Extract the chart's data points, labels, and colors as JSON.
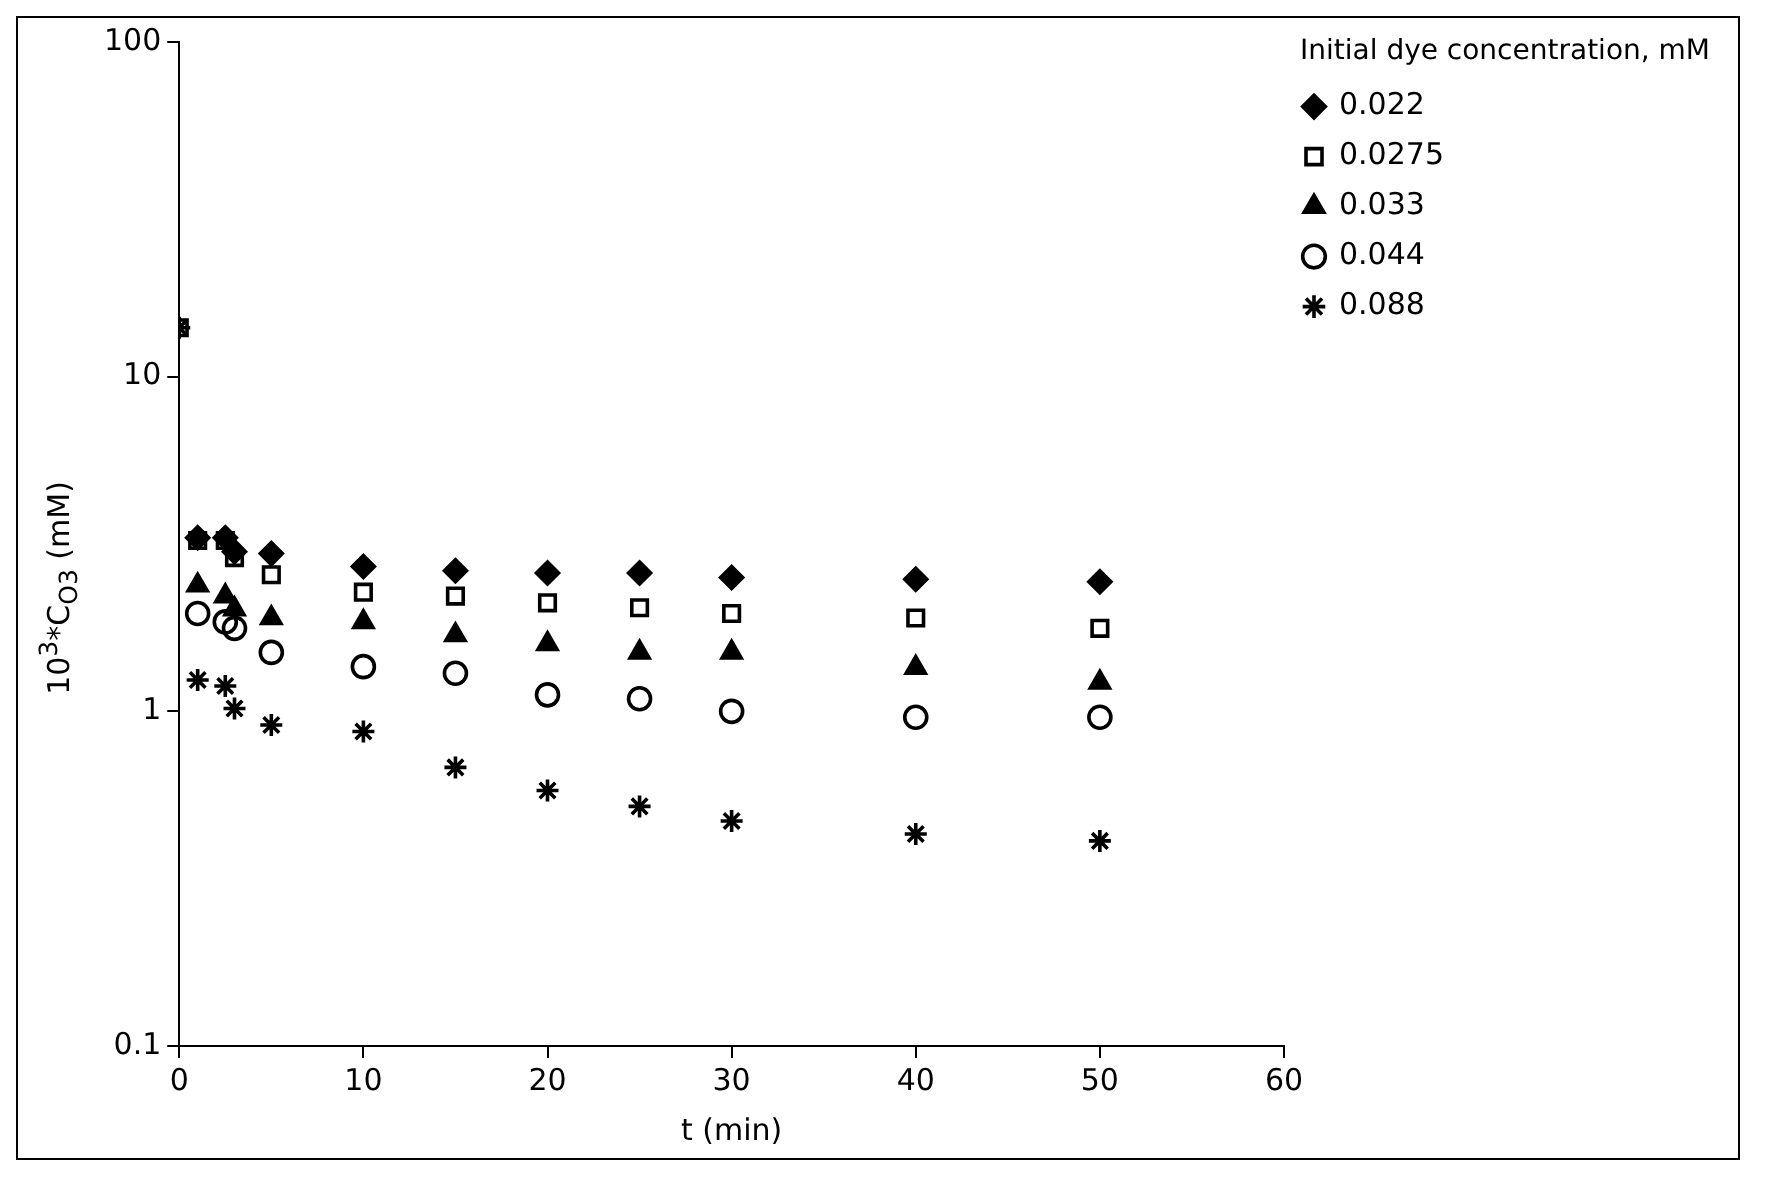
{
  "chart_data": {
    "type": "scatter",
    "xlabel": "t (min)",
    "ylabel": "10$^{3}$*C$_{O3}$ (mM)",
    "legend_title": "Initial dye concentration, mM",
    "legend": "top right",
    "grid": false,
    "log": "y",
    "x": [
      0,
      1,
      2.5,
      3,
      5,
      10,
      15,
      20,
      25,
      30,
      40,
      50
    ],
    "xlim": [
      0,
      60
    ],
    "xticks": [
      0,
      10,
      20,
      30,
      40,
      50,
      60
    ],
    "ylim": [
      0.1,
      100
    ],
    "yticks": [
      0.1,
      1,
      10,
      100
    ],
    "series": [
      {
        "name": "0.022",
        "color": "#000000",
        "marker": "diamond",
        "values": [
          null,
          3.3,
          3.3,
          3.0,
          2.96,
          2.71,
          2.63,
          2.59,
          2.59,
          2.51,
          2.48,
          2.44
        ]
      },
      {
        "name": "0.0275",
        "color": "#000000",
        "marker": "square",
        "values": [
          14,
          3.24,
          3.24,
          2.88,
          2.56,
          2.27,
          2.21,
          2.11,
          2.04,
          1.96,
          1.9,
          1.77
        ]
      },
      {
        "name": "0.033",
        "color": "#000000",
        "marker": "triangle",
        "values": [
          null,
          2.38,
          2.21,
          2.02,
          1.9,
          1.85,
          1.69,
          1.59,
          1.5,
          1.5,
          1.35,
          1.22
        ]
      },
      {
        "name": "0.044",
        "color": "#000000",
        "marker": "circle",
        "values": [
          null,
          1.96,
          1.85,
          1.77,
          1.5,
          1.36,
          1.3,
          1.12,
          1.09,
          1.0,
          0.96,
          0.96
        ]
      },
      {
        "name": "0.088",
        "color": "#000000",
        "marker": "cross",
        "values": [
          14,
          1.24,
          1.19,
          1.02,
          0.91,
          0.87,
          0.68,
          0.58,
          0.52,
          0.47,
          0.43,
          0.41
        ]
      }
    ]
  }
}
